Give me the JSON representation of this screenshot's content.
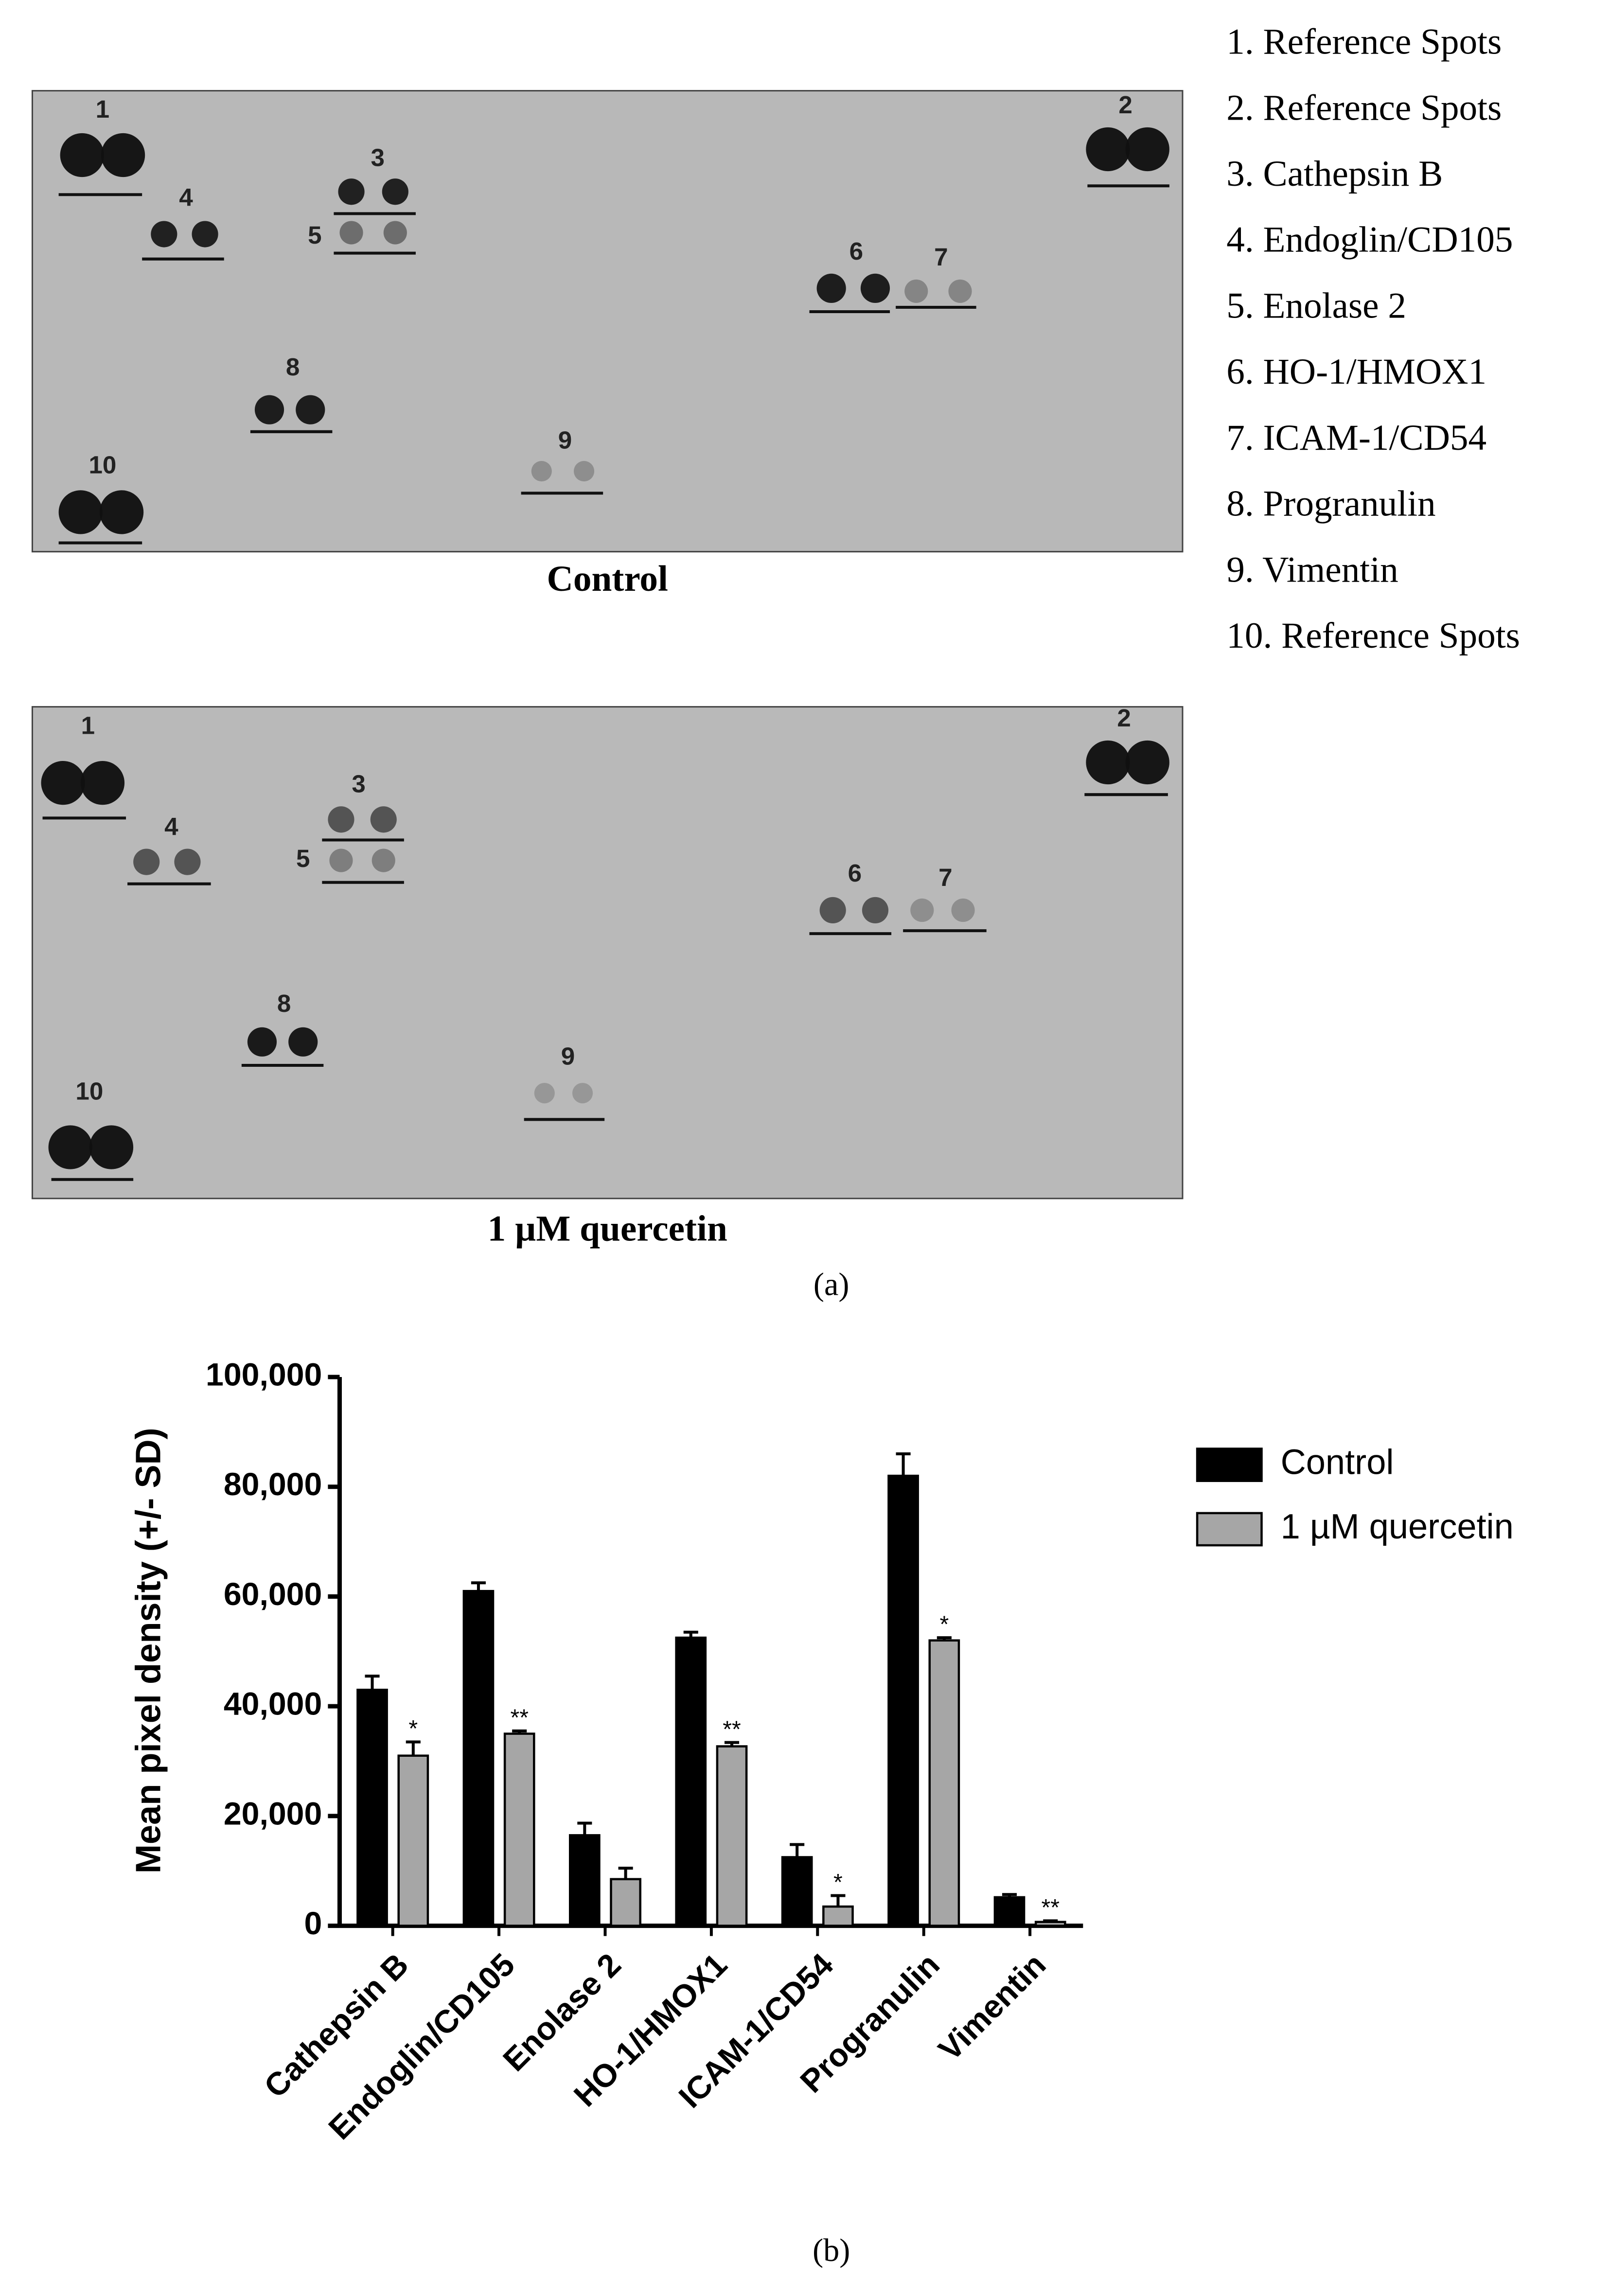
{
  "legend_list": [
    "1. Reference Spots",
    "2. Reference Spots",
    "3. Cathepsin B",
    "4. Endoglin/CD105",
    "5. Enolase 2",
    "6. HO-1/HMOX1",
    "7. ICAM-1/CD54",
    "8. Progranulin",
    "9. Vimentin",
    "10. Reference Spots"
  ],
  "blots": [
    {
      "caption": "Control",
      "spot_labels": [
        "1",
        "2",
        "3",
        "4",
        "5",
        "6",
        "7",
        "8",
        "9",
        "10"
      ]
    },
    {
      "caption": "1 µM quercetin",
      "spot_labels": [
        "1",
        "2",
        "3",
        "4",
        "5",
        "6",
        "7",
        "8",
        "9",
        "10"
      ]
    }
  ],
  "panel_labels": [
    "(a)",
    "(b)"
  ],
  "chart_data": {
    "type": "bar",
    "y_label": "Mean pixel density (+/- SD)",
    "categories": [
      "Cathepsin B",
      "Endoglin/CD105",
      "Enolase 2",
      "HO-1/HMOX1",
      "ICAM-1/CD54",
      "Progranulin",
      "Vimentin"
    ],
    "series": [
      {
        "name": "Control",
        "color": "#000000",
        "values": [
          43000,
          61000,
          16500,
          52500,
          12500,
          82000,
          5200
        ],
        "errors": [
          2500,
          1500,
          2200,
          1000,
          2300,
          4000,
          500
        ]
      },
      {
        "name": "1 µM quercetin",
        "color": "#a6a6a6",
        "values": [
          31000,
          35000,
          8500,
          32700,
          3500,
          52000,
          700
        ],
        "errors": [
          2500,
          500,
          2000,
          700,
          2000,
          500,
          200
        ],
        "significance": [
          "*",
          "**",
          null,
          "**",
          "*",
          "*",
          "**"
        ]
      }
    ],
    "ylim": [
      0,
      100000
    ],
    "yticks": [
      0,
      {
        "value": 20000,
        "label": "20,000"
      },
      {
        "value": 40000,
        "label": "40,000"
      },
      {
        "value": 60000,
        "label": "60,000"
      },
      {
        "value": 80000,
        "label": "80,000"
      },
      {
        "value": 100000,
        "label": "100,000"
      }
    ],
    "legend": "right"
  }
}
